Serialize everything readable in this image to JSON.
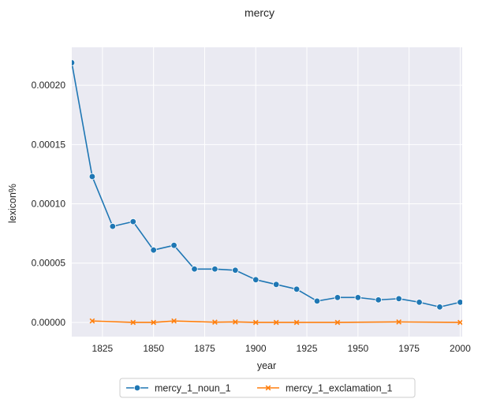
{
  "chart_data": {
    "type": "line",
    "title": "mercy",
    "xlabel": "year",
    "ylabel": "lexicon%",
    "xlim": [
      1810,
      2001
    ],
    "ylim": [
      -1.2e-05,
      0.000232
    ],
    "x_ticks": [
      1825,
      1850,
      1875,
      1900,
      1925,
      1950,
      1975,
      2000
    ],
    "y_ticks": [
      0.0,
      5e-05,
      0.0001,
      0.00015,
      0.0002
    ],
    "y_tick_labels": [
      "0.00000",
      "0.00005",
      "0.00010",
      "0.00015",
      "0.00020"
    ],
    "grid": true,
    "legend_position": "bottom-center",
    "series": [
      {
        "name": "mercy_1_noun_1",
        "color": "#1f77b4",
        "marker": "circle",
        "x": [
          1810,
          1820,
          1830,
          1840,
          1850,
          1860,
          1870,
          1880,
          1890,
          1900,
          1910,
          1920,
          1930,
          1940,
          1950,
          1960,
          1970,
          1980,
          1990,
          2000
        ],
        "y": [
          0.000219,
          0.000123,
          8.1e-05,
          8.5e-05,
          6.1e-05,
          6.5e-05,
          4.5e-05,
          4.5e-05,
          4.4e-05,
          3.6e-05,
          3.2e-05,
          2.8e-05,
          1.8e-05,
          2.1e-05,
          2.1e-05,
          1.9e-05,
          2e-05,
          1.7e-05,
          1.3e-05,
          1.7e-05
        ]
      },
      {
        "name": "mercy_1_exclamation_1",
        "color": "#ff7f0e",
        "marker": "x",
        "x": [
          1820,
          1840,
          1850,
          1860,
          1880,
          1890,
          1900,
          1910,
          1920,
          1940,
          1970,
          2000
        ],
        "y": [
          1.2e-06,
          0.0,
          0.0,
          1.2e-06,
          2e-07,
          4e-07,
          0.0,
          0.0,
          0.0,
          0.0,
          4e-07,
          0.0
        ]
      }
    ]
  }
}
